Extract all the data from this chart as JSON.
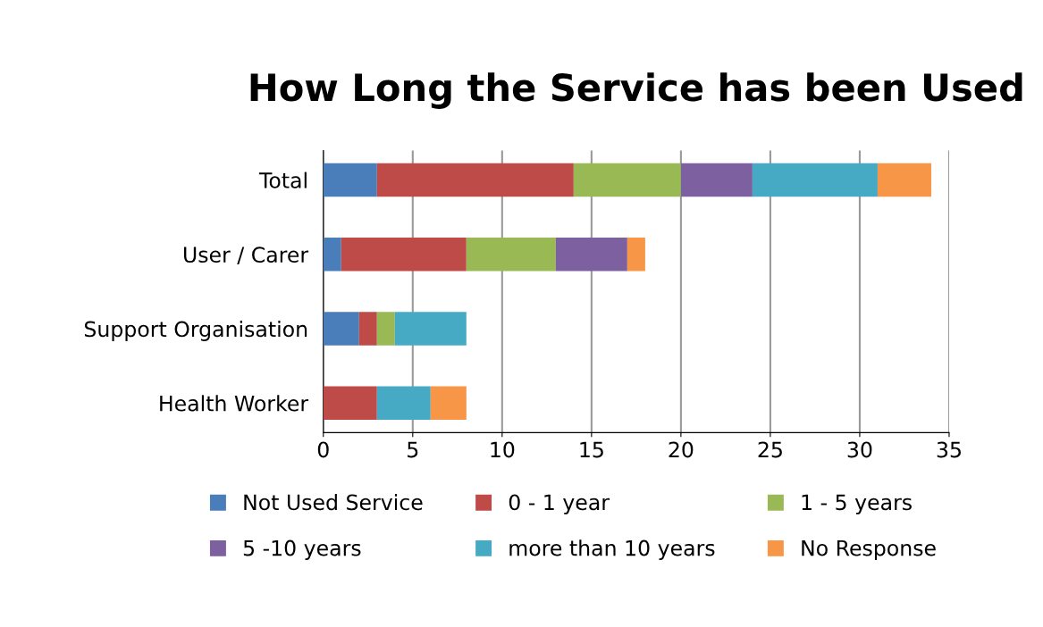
{
  "chart_data": {
    "type": "bar",
    "orientation": "horizontal",
    "stacked": true,
    "title": "How Long the Service has been Used",
    "categories": [
      "Total",
      "User / Carer",
      "Support Organisation",
      "Health Worker"
    ],
    "series": [
      {
        "name": "Not Used Service",
        "color": "#4a7ebb",
        "values": [
          3,
          1,
          2,
          0
        ]
      },
      {
        "name": "0 - 1 year",
        "color": "#be4b48",
        "values": [
          11,
          7,
          1,
          3
        ]
      },
      {
        "name": "1 - 5 years",
        "color": "#98b954",
        "values": [
          6,
          5,
          1,
          0
        ]
      },
      {
        "name": "5 -10 years",
        "color": "#7d60a0",
        "values": [
          4,
          4,
          0,
          0
        ]
      },
      {
        "name": "more than 10 years",
        "color": "#46aac5",
        "values": [
          7,
          0,
          4,
          3
        ]
      },
      {
        "name": "No Response",
        "color": "#f79646",
        "values": [
          3,
          1,
          0,
          2
        ]
      }
    ],
    "xlim": [
      0,
      35
    ],
    "xticks": [
      0,
      5,
      10,
      15,
      20,
      25,
      30,
      35
    ],
    "grid": "x",
    "legend": "bottom"
  }
}
